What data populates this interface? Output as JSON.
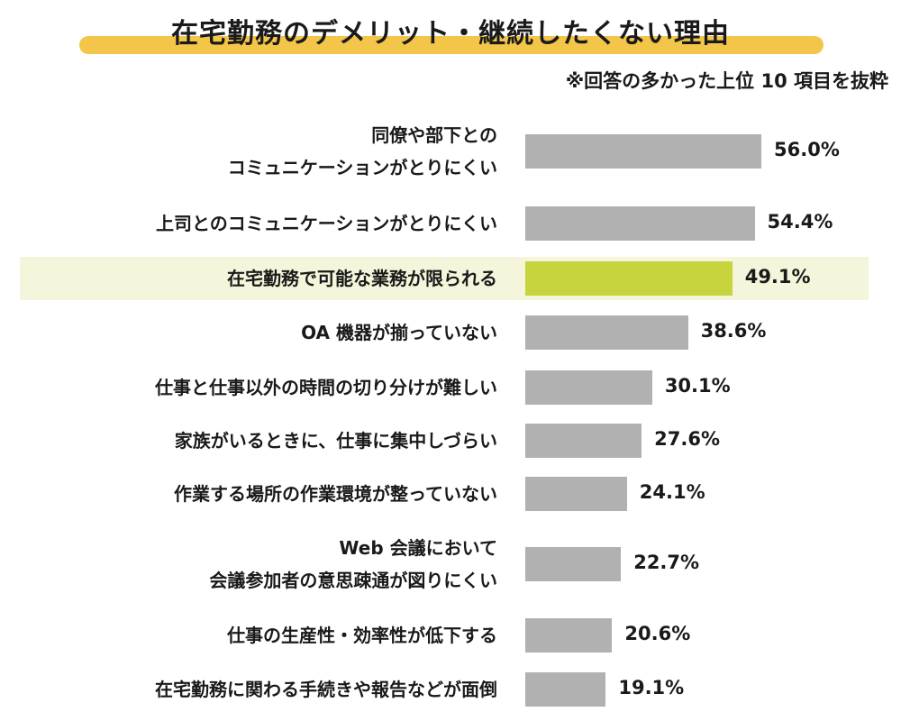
{
  "title": "在宅勤務のデメリット・継続したくない理由",
  "note": "※回答の多かった上位 10 項目を抜粋",
  "colors": {
    "bar": "#b1b1b1",
    "accent_bar": "#c7d43d",
    "highlight_band": "#f4f5da",
    "title_underline": "#f3c64a"
  },
  "chart_data": {
    "type": "bar",
    "orientation": "horizontal",
    "unit": "%",
    "xlim": [
      0,
      100
    ],
    "grid": false,
    "highlighted_category_index": 2,
    "categories": [
      [
        "同僚や部下との",
        "コミュニケーションがとりにくい"
      ],
      [
        "上司とのコミュニケーションがとりにくい"
      ],
      [
        "在宅勤務で可能な業務が限られる"
      ],
      [
        "OA 機器が揃っていない"
      ],
      [
        "仕事と仕事以外の時間の切り分けが難しい"
      ],
      [
        "家族がいるときに、仕事に集中しづらい"
      ],
      [
        "作業する場所の作業環境が整っていない"
      ],
      [
        "Web 会議において",
        "会議参加者の意思疎通が図りにくい"
      ],
      [
        "仕事の生産性・効率性が低下する"
      ],
      [
        "在宅勤務に関わる手続きや報告などが面倒"
      ]
    ],
    "values": [
      56.0,
      54.4,
      49.1,
      38.6,
      30.1,
      27.6,
      24.1,
      22.7,
      20.6,
      19.1
    ],
    "value_labels": [
      "56.0%",
      "54.4%",
      "49.1%",
      "38.6%",
      "30.1%",
      "27.6%",
      "24.1%",
      "22.7%",
      "20.6%",
      "19.1%"
    ]
  }
}
